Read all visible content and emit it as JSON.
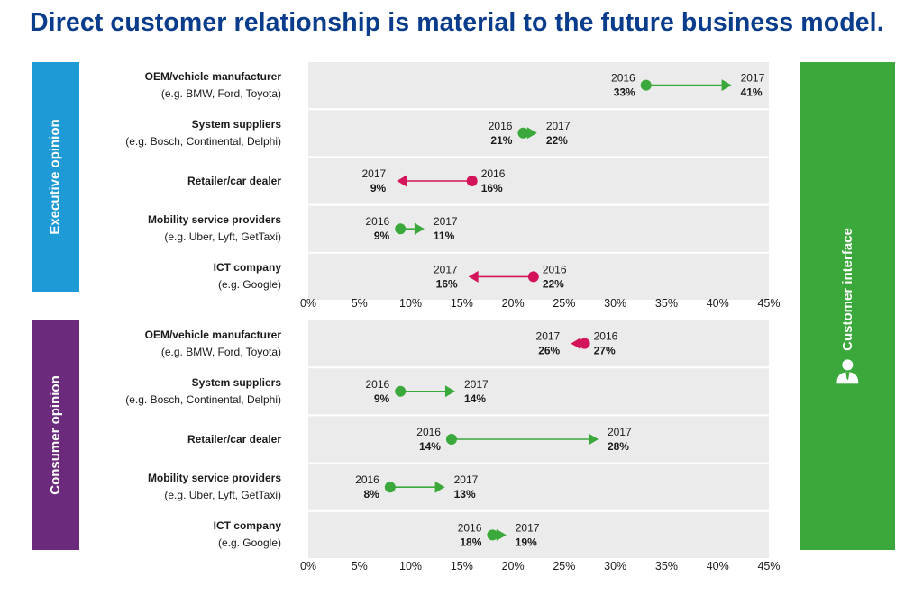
{
  "title": "Direct customer relationship is material to the future business model.",
  "right_band": {
    "label": "Customer interface",
    "icon": "person-icon",
    "color": "#3aa83a"
  },
  "colors": {
    "increase": "#3aa83a",
    "decrease": "#d4145a",
    "panel": "#ebebeb"
  },
  "chart_data": [
    {
      "type": "dumbbell-arrow",
      "panel_label": "Executive opinion",
      "band_color": "#1e9ad6",
      "x_ticks": [
        "0%",
        "5%",
        "10%",
        "15%",
        "20%",
        "25%",
        "30%",
        "35%",
        "40%",
        "45%"
      ],
      "xlim": [
        0,
        45
      ],
      "year_from": "2016",
      "year_to": "2017",
      "rows": [
        {
          "name": "OEM/vehicle manufacturer",
          "sub": "(e.g. BMW, Ford, Toyota)",
          "v2016": 33,
          "v2017": 41,
          "label2016": "33%",
          "label2017": "41%"
        },
        {
          "name": "System suppliers",
          "sub": "(e.g. Bosch, Continental, Delphi)",
          "v2016": 21,
          "v2017": 22,
          "label2016": "21%",
          "label2017": "22%"
        },
        {
          "name": "Retailer/car dealer",
          "sub": "",
          "v2016": 16,
          "v2017": 9,
          "label2016": "16%",
          "label2017": "9%"
        },
        {
          "name": "Mobility service providers",
          "sub": "(e.g. Uber, Lyft, GetTaxi)",
          "v2016": 9,
          "v2017": 11,
          "label2016": "9%",
          "label2017": "11%"
        },
        {
          "name": "ICT company",
          "sub": "(e.g. Google)",
          "v2016": 22,
          "v2017": 16,
          "label2016": "22%",
          "label2017": "16%"
        }
      ]
    },
    {
      "type": "dumbbell-arrow",
      "panel_label": "Consumer opinion",
      "band_color": "#6b2a7c",
      "x_ticks": [
        "0%",
        "5%",
        "10%",
        "15%",
        "20%",
        "25%",
        "30%",
        "35%",
        "40%",
        "45%"
      ],
      "xlim": [
        0,
        45
      ],
      "year_from": "2016",
      "year_to": "2017",
      "rows": [
        {
          "name": "OEM/vehicle manufacturer",
          "sub": "(e.g. BMW, Ford, Toyota)",
          "v2016": 27,
          "v2017": 26,
          "label2016": "27%",
          "label2017": "26%"
        },
        {
          "name": "System suppliers",
          "sub": "(e.g. Bosch, Continental, Delphi)",
          "v2016": 9,
          "v2017": 14,
          "label2016": "9%",
          "label2017": "14%"
        },
        {
          "name": "Retailer/car dealer",
          "sub": "",
          "v2016": 14,
          "v2017": 28,
          "label2016": "14%",
          "label2017": "28%"
        },
        {
          "name": "Mobility service providers",
          "sub": "(e.g. Uber, Lyft, GetTaxi)",
          "v2016": 8,
          "v2017": 13,
          "label2016": "8%",
          "label2017": "13%"
        },
        {
          "name": "ICT company",
          "sub": "(e.g. Google)",
          "v2016": 18,
          "v2017": 19,
          "label2016": "18%",
          "label2017": "19%"
        }
      ]
    }
  ]
}
